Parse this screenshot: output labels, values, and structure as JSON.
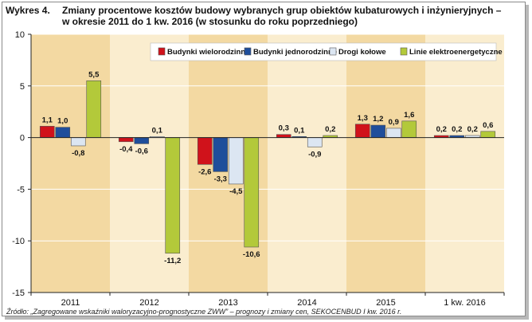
{
  "header": {
    "number": "Wykres 4.",
    "title": "Zmiany procentowe kosztów budowy wybranych grup obiektów kubaturowych i inżynieryjnych – w okresie 2011 do 1 kw. 2016 (w stosunku do roku poprzedniego)"
  },
  "source": "Źródło: „Zagregowane wskaźniki waloryzacyjno-prognostyczne ZWW” – prognozy i zmiany cen, SEKOCENBUD I kw. 2016 r.",
  "colors": {
    "band_dark": "#f3d9a2",
    "band_light": "#faedcf",
    "grid": "#ffffff",
    "axis": "#222222"
  },
  "chart_data": {
    "type": "bar",
    "categories": [
      "2011",
      "2012",
      "2013",
      "2014",
      "2015",
      "1 kw. 2016"
    ],
    "series": [
      {
        "name": "Budynki wielorodzinne",
        "color": "#d0121b",
        "values": [
          1.1,
          -0.4,
          -2.6,
          0.3,
          1.3,
          0.2
        ],
        "labels": [
          "1,1",
          "-0,4",
          "-2,6",
          "0,3",
          "1,3",
          "0,2"
        ]
      },
      {
        "name": "Budynki jednorodzinne",
        "color": "#1f4e9b",
        "values": [
          1.0,
          -0.6,
          -3.3,
          0.1,
          1.2,
          0.2
        ],
        "labels": [
          "1,0",
          "-0,6",
          "-3,3",
          "0,1",
          "1,2",
          "0,2"
        ]
      },
      {
        "name": "Drogi kołowe",
        "color": "#dce6f2",
        "values": [
          -0.8,
          0.1,
          -4.5,
          -0.9,
          0.9,
          0.2
        ],
        "labels": [
          "-0,8",
          "0,1",
          "-4,5",
          "-0,9",
          "0,9",
          "0,2"
        ]
      },
      {
        "name": "Linie elektroenergetyczne",
        "color": "#b3c93a",
        "values": [
          5.5,
          -11.2,
          -10.6,
          0.2,
          1.6,
          0.6
        ],
        "labels": [
          "5,5",
          "-11,2",
          "-10,6",
          "0,2",
          "1,6",
          "0,6"
        ]
      }
    ],
    "ylim": [
      -15,
      10
    ],
    "yticks": [
      10,
      5,
      0,
      -5,
      -10,
      -15
    ],
    "ytick_labels": [
      "10",
      "5",
      "0",
      "-5",
      "-10",
      "-15"
    ],
    "grid": true,
    "legend_position": "top-right"
  }
}
